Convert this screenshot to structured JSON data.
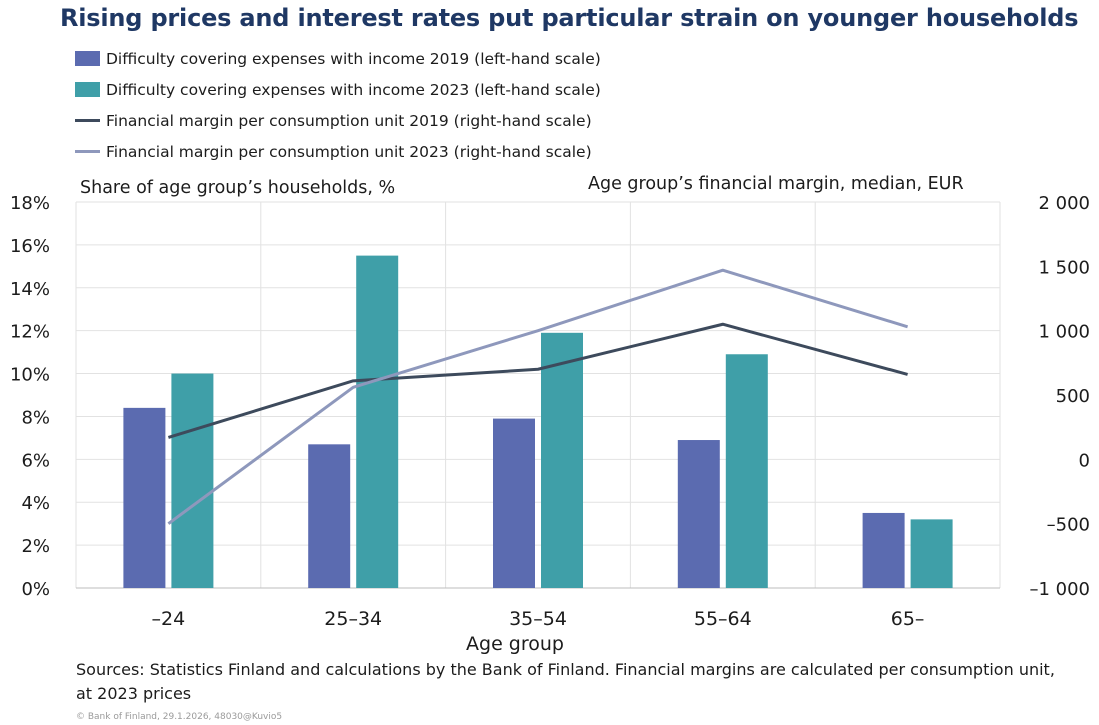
{
  "header": {
    "title": "Rising prices and interest rates put particular strain on younger households"
  },
  "legend": [
    {
      "label": "Difficulty covering expenses with income 2019 (left-hand scale)",
      "kind": "bar",
      "color": "#5b6bb0"
    },
    {
      "label": "Difficulty covering expenses with income 2023 (left-hand scale)",
      "kind": "bar",
      "color": "#3f9fa8"
    },
    {
      "label": "Financial margin per consumption unit 2019 (right-hand scale)",
      "kind": "line",
      "color": "#3d4a5c"
    },
    {
      "label": "Financial margin per consumption unit 2023 (right-hand scale)",
      "kind": "line",
      "color": "#8e98bc"
    }
  ],
  "chart_data": {
    "type": "bar",
    "categories": [
      "–24",
      "25–34",
      "35–54",
      "55–64",
      "65–"
    ],
    "xlabel": "Age group",
    "ylabel_left": "Share of age group’s households, %",
    "ylabel_right": "Age group’s financial margin, median, EUR",
    "ylim_left": [
      0,
      18
    ],
    "ylim_right": [
      -1000,
      2000
    ],
    "yticks_left": [
      "0%",
      "2%",
      "4%",
      "6%",
      "8%",
      "10%",
      "12%",
      "14%",
      "16%",
      "18%"
    ],
    "yticks_right": [
      "–1 000",
      "–500",
      "0",
      "500",
      "1 000",
      "1 500",
      "2 000"
    ],
    "grid": true,
    "legend_position": "top-left",
    "bar_series": [
      {
        "name": "Difficulty covering expenses with income 2019 (left-hand scale)",
        "values": [
          8.4,
          6.7,
          7.9,
          6.9,
          3.5
        ],
        "color": "#5b6bb0"
      },
      {
        "name": "Difficulty covering expenses with income 2023 (left-hand scale)",
        "values": [
          10.0,
          15.5,
          11.9,
          10.9,
          3.2
        ],
        "color": "#3f9fa8"
      }
    ],
    "line_series": [
      {
        "name": "Financial margin per consumption unit 2019 (right-hand scale)",
        "values": [
          170,
          610,
          700,
          1050,
          660
        ],
        "color": "#3d4a5c"
      },
      {
        "name": "Financial margin per consumption unit 2023 (right-hand scale)",
        "values": [
          -500,
          560,
          1000,
          1470,
          1030
        ],
        "color": "#8e98bc"
      }
    ]
  },
  "footer": {
    "sources": "Sources: Statistics Finland and calculations by the Bank of Finland. Financial margins are calculated per consumption unit, at 2023 prices",
    "copyright": "© Bank of Finland, 29.1.2026, 48030@Kuvio5"
  }
}
